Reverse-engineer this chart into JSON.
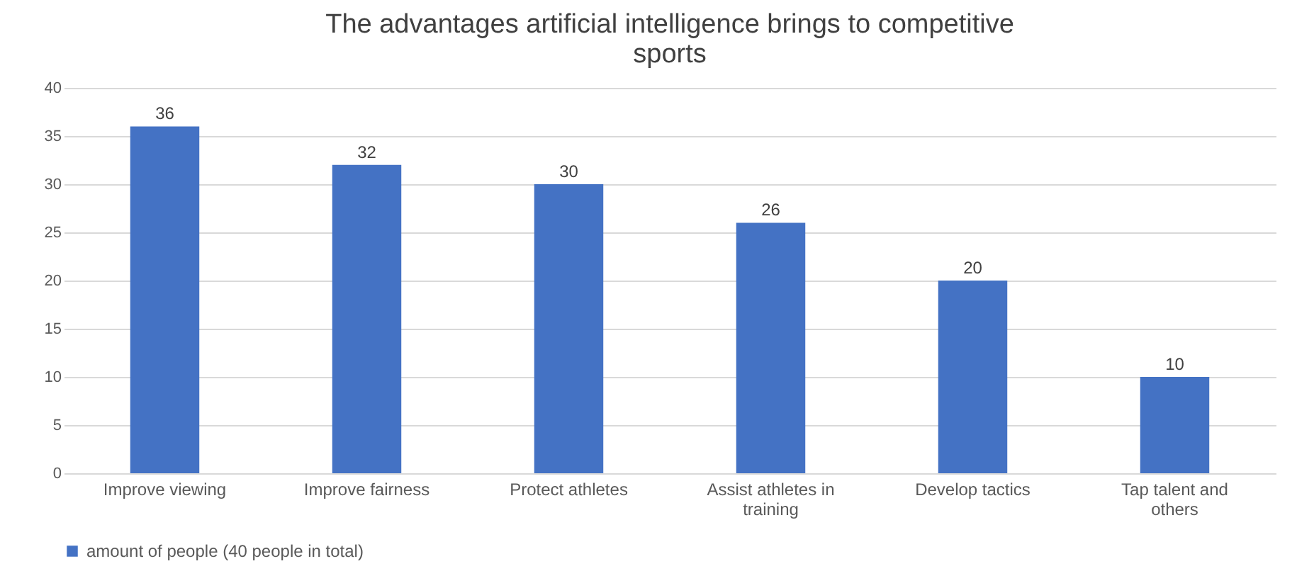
{
  "chart_data": {
    "type": "bar",
    "title": "The advantages artificial intelligence brings to competitive sports",
    "categories": [
      "Improve viewing",
      "Improve fairness",
      "Protect athletes",
      "Assist athletes in training",
      "Develop tactics",
      "Tap talent and others"
    ],
    "series": [
      {
        "name": "amount of people (40 people in total)",
        "color": "#4472c4",
        "values": [
          36,
          32,
          30,
          26,
          20,
          10
        ]
      }
    ],
    "ylim": [
      0,
      40
    ],
    "yticks": [
      0,
      5,
      10,
      15,
      20,
      25,
      30,
      35,
      40
    ],
    "grid": "y",
    "legend": "bottom",
    "data_labels": true
  }
}
